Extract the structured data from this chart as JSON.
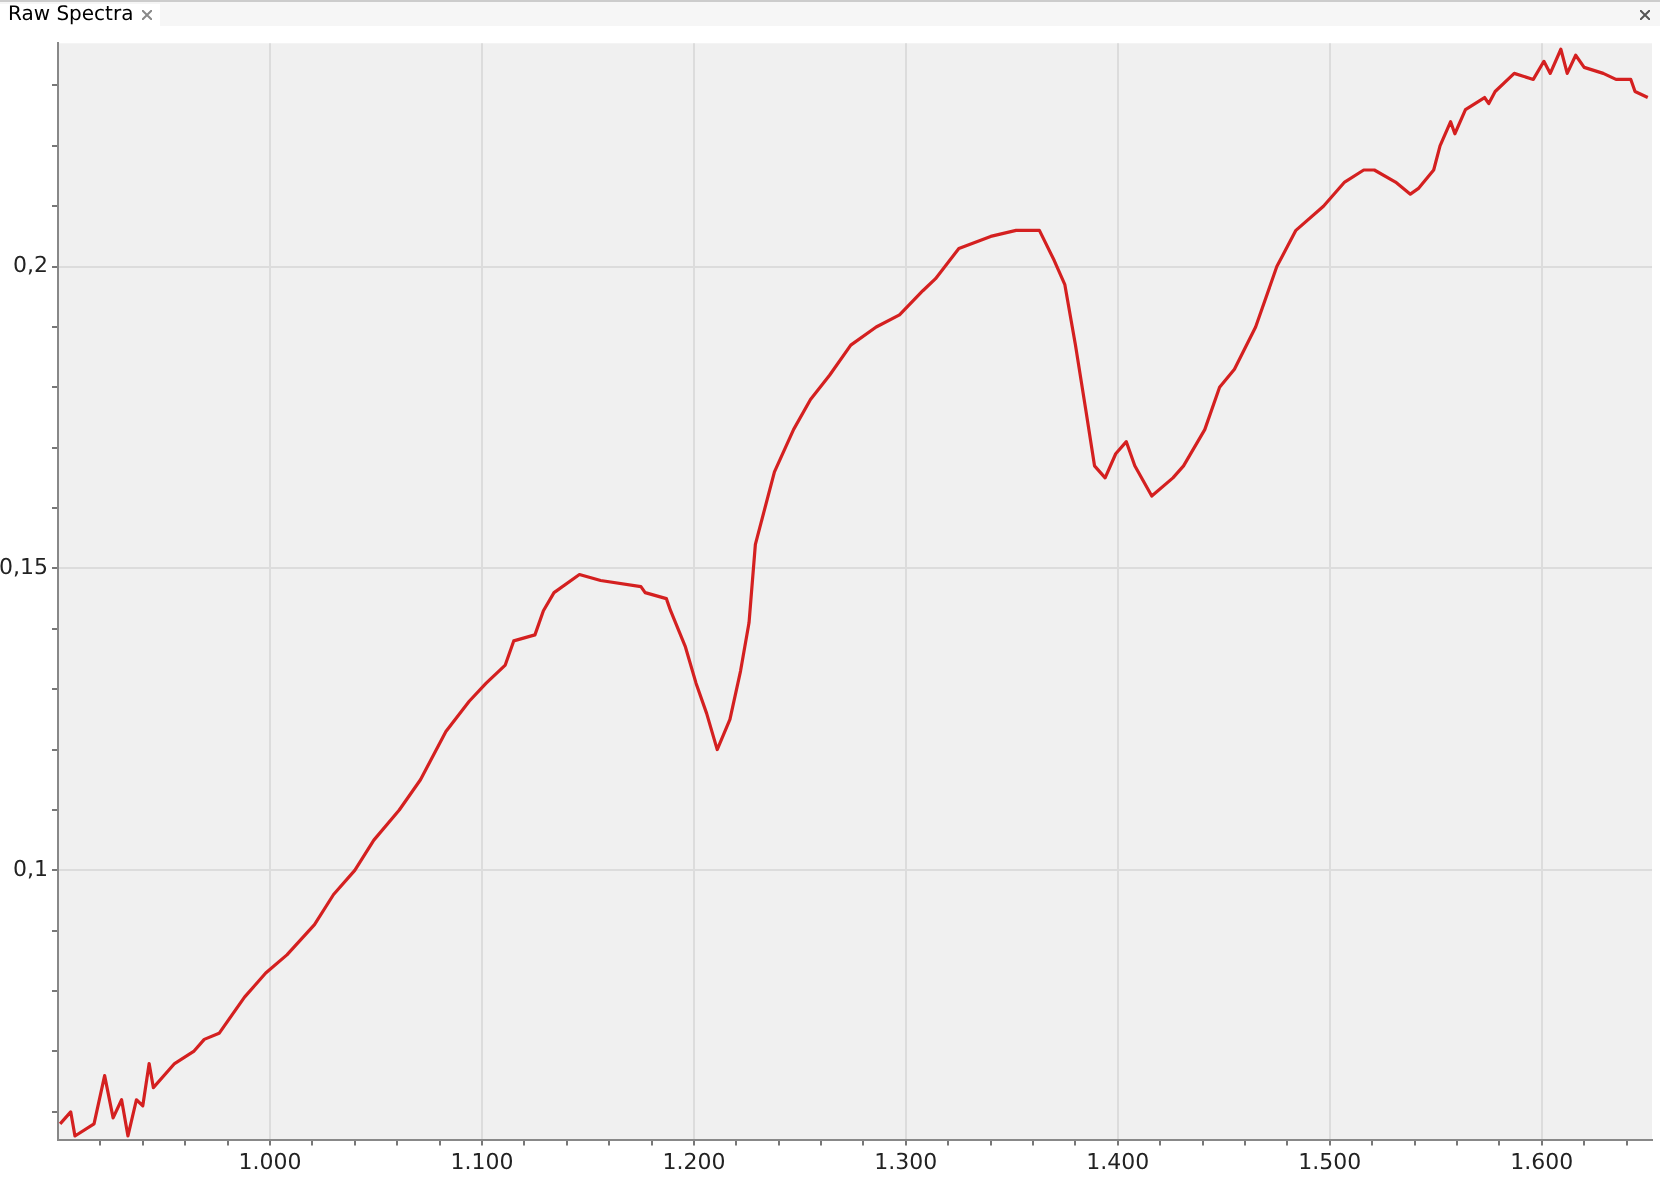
{
  "chart_data": {
    "type": "line",
    "title": "Raw Spectra",
    "x": [
      901,
      906,
      908,
      917,
      922,
      926,
      930,
      933,
      937,
      940,
      943,
      945,
      955,
      964,
      969,
      976,
      988,
      998,
      1008,
      1021,
      1030,
      1040,
      1049,
      1061,
      1071,
      1083,
      1094,
      1102,
      1111,
      1115,
      1125,
      1129,
      1134,
      1146,
      1156,
      1175,
      1177,
      1187,
      1189,
      1196,
      1201,
      1206,
      1211,
      1217,
      1222,
      1226,
      1229,
      1238,
      1247,
      1255,
      1264,
      1274,
      1286,
      1297,
      1308,
      1314,
      1325,
      1340,
      1352,
      1363,
      1370,
      1375,
      1380,
      1385,
      1389,
      1394,
      1399,
      1404,
      1408,
      1416,
      1426,
      1431,
      1441,
      1448,
      1455,
      1465,
      1475,
      1484,
      1497,
      1507,
      1516,
      1521,
      1531,
      1538,
      1542,
      1549,
      1552,
      1557,
      1559,
      1564,
      1573,
      1575,
      1578,
      1587,
      1596,
      1601,
      1604,
      1609,
      1612,
      1616,
      1620,
      1629,
      1635,
      1642,
      1644,
      1650
    ],
    "series": [
      {
        "color": "#d42020",
        "values": [
          0.058,
          0.06,
          0.056,
          0.058,
          0.066,
          0.059,
          0.062,
          0.056,
          0.062,
          0.061,
          0.068,
          0.064,
          0.068,
          0.07,
          0.072,
          0.073,
          0.079,
          0.083,
          0.086,
          0.091,
          0.096,
          0.1,
          0.105,
          0.11,
          0.115,
          0.123,
          0.128,
          0.131,
          0.134,
          0.138,
          0.139,
          0.143,
          0.146,
          0.149,
          0.148,
          0.147,
          0.146,
          0.145,
          0.143,
          0.137,
          0.131,
          0.126,
          0.12,
          0.125,
          0.133,
          0.141,
          0.154,
          0.166,
          0.173,
          0.178,
          0.182,
          0.187,
          0.19,
          0.192,
          0.196,
          0.198,
          0.203,
          0.205,
          0.206,
          0.206,
          0.201,
          0.197,
          0.187,
          0.176,
          0.167,
          0.165,
          0.169,
          0.171,
          0.167,
          0.162,
          0.165,
          0.167,
          0.173,
          0.18,
          0.183,
          0.19,
          0.2,
          0.206,
          0.21,
          0.214,
          0.216,
          0.216,
          0.214,
          0.212,
          0.213,
          0.216,
          0.22,
          0.224,
          0.222,
          0.226,
          0.228,
          0.227,
          0.229,
          0.232,
          0.231,
          0.234,
          0.232,
          0.236,
          0.232,
          0.235,
          0.233,
          0.232,
          0.231,
          0.231,
          0.229,
          0.228
        ]
      }
    ],
    "xlim": [
      900,
      1652
    ],
    "xticks": [
      {
        "value": 920,
        "label": null
      },
      {
        "value": 940,
        "label": null
      },
      {
        "value": 960,
        "label": null
      },
      {
        "value": 980,
        "label": null
      },
      {
        "value": 1000,
        "label": "1.000"
      },
      {
        "value": 1020,
        "label": null
      },
      {
        "value": 1040,
        "label": null
      },
      {
        "value": 1060,
        "label": null
      },
      {
        "value": 1080,
        "label": null
      },
      {
        "value": 1100,
        "label": "1.100"
      },
      {
        "value": 1120,
        "label": null
      },
      {
        "value": 1140,
        "label": null
      },
      {
        "value": 1160,
        "label": null
      },
      {
        "value": 1180,
        "label": null
      },
      {
        "value": 1200,
        "label": "1.200"
      },
      {
        "value": 1220,
        "label": null
      },
      {
        "value": 1240,
        "label": null
      },
      {
        "value": 1260,
        "label": null
      },
      {
        "value": 1280,
        "label": null
      },
      {
        "value": 1300,
        "label": "1.300"
      },
      {
        "value": 1320,
        "label": null
      },
      {
        "value": 1340,
        "label": null
      },
      {
        "value": 1360,
        "label": null
      },
      {
        "value": 1380,
        "label": null
      },
      {
        "value": 1400,
        "label": "1.400"
      },
      {
        "value": 1420,
        "label": null
      },
      {
        "value": 1440,
        "label": null
      },
      {
        "value": 1460,
        "label": null
      },
      {
        "value": 1480,
        "label": null
      },
      {
        "value": 1500,
        "label": "1.500"
      },
      {
        "value": 1520,
        "label": null
      },
      {
        "value": 1540,
        "label": null
      },
      {
        "value": 1560,
        "label": null
      },
      {
        "value": 1580,
        "label": null
      },
      {
        "value": 1600,
        "label": "1.600"
      },
      {
        "value": 1620,
        "label": null
      },
      {
        "value": 1640,
        "label": null
      }
    ],
    "ylim": [
      0.0554,
      0.237
    ],
    "yticks": [
      {
        "value": 0.06,
        "label": null
      },
      {
        "value": 0.07,
        "label": null
      },
      {
        "value": 0.08,
        "label": null
      },
      {
        "value": 0.09,
        "label": null
      },
      {
        "value": 0.1,
        "label": "0,1"
      },
      {
        "value": 0.11,
        "label": null
      },
      {
        "value": 0.12,
        "label": null
      },
      {
        "value": 0.13,
        "label": null
      },
      {
        "value": 0.14,
        "label": null
      },
      {
        "value": 0.15,
        "label": "0,15"
      },
      {
        "value": 0.16,
        "label": null
      },
      {
        "value": 0.17,
        "label": null
      },
      {
        "value": 0.18,
        "label": null
      },
      {
        "value": 0.19,
        "label": null
      },
      {
        "value": 0.2,
        "label": "0,2"
      },
      {
        "value": 0.21,
        "label": null
      },
      {
        "value": 0.22,
        "label": null
      },
      {
        "value": 0.23,
        "label": null
      }
    ],
    "grid": true,
    "legend": false,
    "marker": "none",
    "line_style": "solid"
  }
}
